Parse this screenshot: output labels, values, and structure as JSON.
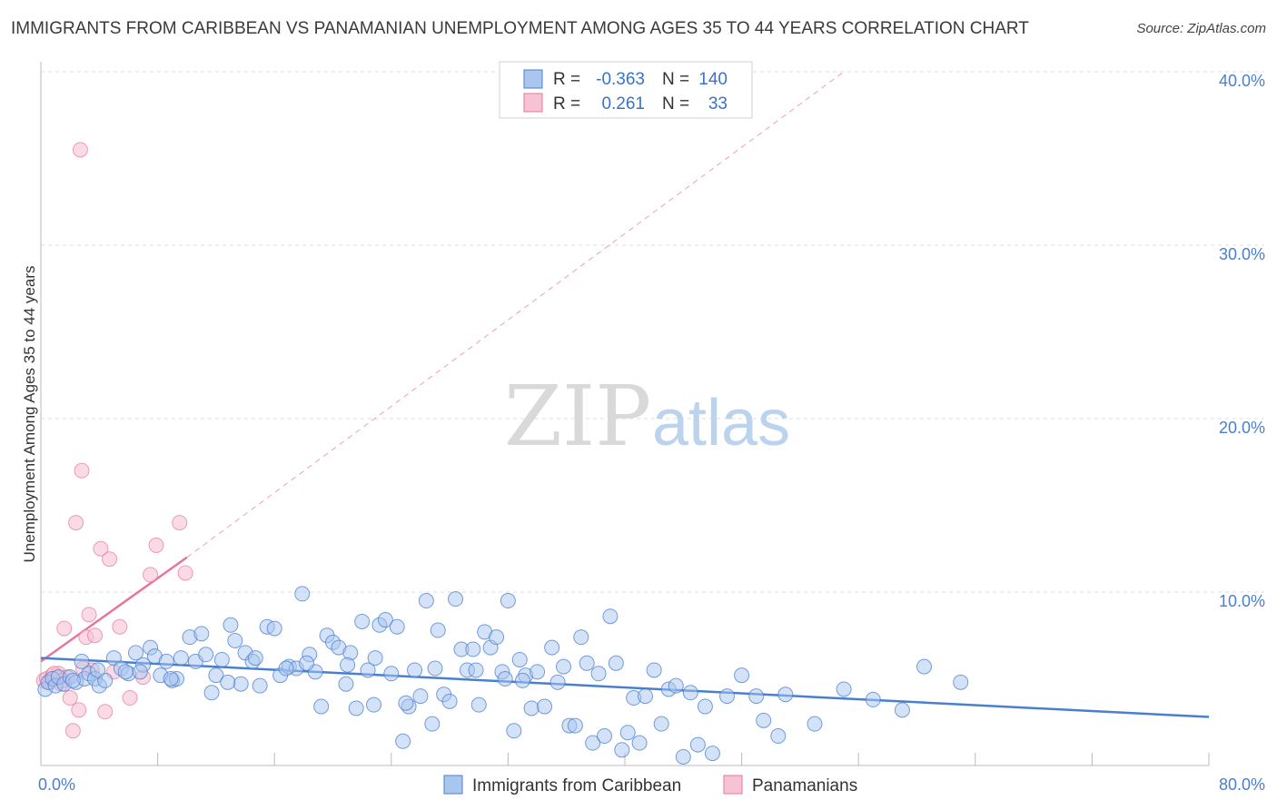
{
  "title": "IMMIGRANTS FROM CARIBBEAN VS PANAMANIAN UNEMPLOYMENT AMONG AGES 35 TO 44 YEARS CORRELATION CHART",
  "source": "Source: ZipAtlas.com",
  "watermark": {
    "zip": "ZIP",
    "atlas": "atlas"
  },
  "colors": {
    "blue": "#4a7fd0",
    "blue_fill": "#a9c6ef",
    "pink": "#e8769a",
    "pink_fill": "#f6c3d4",
    "grid": "#dcdcdc"
  },
  "legend": {
    "rows": [
      {
        "r_label": "R =",
        "r_value": "-0.363",
        "n_label": "N =",
        "n_value": "140"
      },
      {
        "r_label": "R =",
        "r_value": "0.261",
        "n_label": "N =",
        "n_value": "33"
      }
    ]
  },
  "bottom_legend": [
    "Immigrants from Caribbean",
    "Panamanians"
  ],
  "chart_data": {
    "type": "scatter",
    "title": "IMMIGRANTS FROM CARIBBEAN VS PANAMANIAN UNEMPLOYMENT AMONG AGES 35 TO 44 YEARS CORRELATION CHART",
    "xlabel": "",
    "ylabel": "Unemployment Among Ages 35 to 44 years",
    "xlim": [
      0,
      80
    ],
    "ylim": [
      0,
      40
    ],
    "x_tick_labels": [
      "0.0%",
      "80.0%"
    ],
    "y_ticks": [
      10,
      20,
      30,
      40
    ],
    "y_tick_labels": [
      "10.0%",
      "20.0%",
      "30.0%",
      "40.0%"
    ],
    "series": [
      {
        "name": "Immigrants from Caribbean",
        "R": -0.363,
        "N": 140,
        "trend": {
          "x": [
            0,
            80
          ],
          "y": [
            6.2,
            2.8
          ]
        },
        "points": [
          [
            0.3,
            4.4
          ],
          [
            0.5,
            4.8
          ],
          [
            0.8,
            5.0
          ],
          [
            1.0,
            4.6
          ],
          [
            1.2,
            5.1
          ],
          [
            1.6,
            4.7
          ],
          [
            2.0,
            5.1
          ],
          [
            2.4,
            4.8
          ],
          [
            2.8,
            6.0
          ],
          [
            3.0,
            5.0
          ],
          [
            3.3,
            5.3
          ],
          [
            3.7,
            5.0
          ],
          [
            4.0,
            4.6
          ],
          [
            4.4,
            4.9
          ],
          [
            5.0,
            6.2
          ],
          [
            5.5,
            5.6
          ],
          [
            6.0,
            5.3
          ],
          [
            6.5,
            6.5
          ],
          [
            7.0,
            5.8
          ],
          [
            7.5,
            6.8
          ],
          [
            7.8,
            6.3
          ],
          [
            8.2,
            5.2
          ],
          [
            8.6,
            6.0
          ],
          [
            9.0,
            4.9
          ],
          [
            9.3,
            5.0
          ],
          [
            9.6,
            6.2
          ],
          [
            10.2,
            7.4
          ],
          [
            10.6,
            6.0
          ],
          [
            11.0,
            7.6
          ],
          [
            11.3,
            6.4
          ],
          [
            11.7,
            4.2
          ],
          [
            12.0,
            5.2
          ],
          [
            12.4,
            6.1
          ],
          [
            13.0,
            8.1
          ],
          [
            13.3,
            7.2
          ],
          [
            13.7,
            4.7
          ],
          [
            14.0,
            6.5
          ],
          [
            14.5,
            6.0
          ],
          [
            15.0,
            4.6
          ],
          [
            15.5,
            8.0
          ],
          [
            16.0,
            7.9
          ],
          [
            16.4,
            5.2
          ],
          [
            17.0,
            5.7
          ],
          [
            17.5,
            5.6
          ],
          [
            17.9,
            9.9
          ],
          [
            18.4,
            6.4
          ],
          [
            18.8,
            5.4
          ],
          [
            19.2,
            3.4
          ],
          [
            19.6,
            7.5
          ],
          [
            20.0,
            7.1
          ],
          [
            20.4,
            6.8
          ],
          [
            20.9,
            4.7
          ],
          [
            21.2,
            6.5
          ],
          [
            21.6,
            3.3
          ],
          [
            22.0,
            8.3
          ],
          [
            22.4,
            5.5
          ],
          [
            22.8,
            3.5
          ],
          [
            23.2,
            8.1
          ],
          [
            23.6,
            8.4
          ],
          [
            24.0,
            5.3
          ],
          [
            24.4,
            8.0
          ],
          [
            24.8,
            1.4
          ],
          [
            25.2,
            3.4
          ],
          [
            25.6,
            5.5
          ],
          [
            26.0,
            4.0
          ],
          [
            26.4,
            9.5
          ],
          [
            26.8,
            2.4
          ],
          [
            27.2,
            7.8
          ],
          [
            27.6,
            4.1
          ],
          [
            28.0,
            3.7
          ],
          [
            28.4,
            9.6
          ],
          [
            28.8,
            6.7
          ],
          [
            29.2,
            5.5
          ],
          [
            29.6,
            6.7
          ],
          [
            30.0,
            3.5
          ],
          [
            30.4,
            7.7
          ],
          [
            30.8,
            6.8
          ],
          [
            31.2,
            7.4
          ],
          [
            31.6,
            5.4
          ],
          [
            32.0,
            9.5
          ],
          [
            32.4,
            2.0
          ],
          [
            32.8,
            6.1
          ],
          [
            33.2,
            5.2
          ],
          [
            33.6,
            3.3
          ],
          [
            34.0,
            5.4
          ],
          [
            34.5,
            3.4
          ],
          [
            35.0,
            6.8
          ],
          [
            35.4,
            4.8
          ],
          [
            35.8,
            5.7
          ],
          [
            36.2,
            2.3
          ],
          [
            36.6,
            2.3
          ],
          [
            37.0,
            7.4
          ],
          [
            37.4,
            5.9
          ],
          [
            37.8,
            1.3
          ],
          [
            38.2,
            5.3
          ],
          [
            38.6,
            1.7
          ],
          [
            39.0,
            8.6
          ],
          [
            39.4,
            5.9
          ],
          [
            39.8,
            0.9
          ],
          [
            40.2,
            1.9
          ],
          [
            40.6,
            3.9
          ],
          [
            41.0,
            1.3
          ],
          [
            41.4,
            4.0
          ],
          [
            42.0,
            5.5
          ],
          [
            42.5,
            2.4
          ],
          [
            43.0,
            4.4
          ],
          [
            43.5,
            4.6
          ],
          [
            44.0,
            0.5
          ],
          [
            44.5,
            4.2
          ],
          [
            45.0,
            1.2
          ],
          [
            45.5,
            3.4
          ],
          [
            46.0,
            0.7
          ],
          [
            47.0,
            4.0
          ],
          [
            48.0,
            5.2
          ],
          [
            49.0,
            4.0
          ],
          [
            49.5,
            2.6
          ],
          [
            50.5,
            1.7
          ],
          [
            51.0,
            4.1
          ],
          [
            53.0,
            2.4
          ],
          [
            55.0,
            4.4
          ],
          [
            57.0,
            3.8
          ],
          [
            59.0,
            3.2
          ],
          [
            60.5,
            5.7
          ],
          [
            63.0,
            4.8
          ],
          [
            2.2,
            4.9
          ],
          [
            3.9,
            5.5
          ],
          [
            5.8,
            5.4
          ],
          [
            6.8,
            5.4
          ],
          [
            8.9,
            5.0
          ],
          [
            12.8,
            4.8
          ],
          [
            14.7,
            6.2
          ],
          [
            16.8,
            5.6
          ],
          [
            18.2,
            5.9
          ],
          [
            21.0,
            5.8
          ],
          [
            22.9,
            6.2
          ],
          [
            25.0,
            3.6
          ],
          [
            27.0,
            5.6
          ],
          [
            29.8,
            5.5
          ],
          [
            31.8,
            5.0
          ],
          [
            33.0,
            4.9
          ]
        ]
      },
      {
        "name": "Panamanians",
        "R": 0.261,
        "N": 33,
        "trend": {
          "x": [
            0,
            10
          ],
          "y": [
            6.0,
            12.0
          ],
          "extended_to": [
            55,
            40.0
          ]
        },
        "points": [
          [
            0.2,
            4.9
          ],
          [
            0.4,
            5.0
          ],
          [
            0.6,
            4.8
          ],
          [
            0.8,
            5.2
          ],
          [
            1.0,
            5.0
          ],
          [
            1.2,
            5.3
          ],
          [
            1.4,
            4.7
          ],
          [
            1.6,
            7.9
          ],
          [
            1.8,
            5.1
          ],
          [
            2.0,
            3.9
          ],
          [
            2.2,
            2.0
          ],
          [
            2.4,
            14.0
          ],
          [
            2.6,
            3.2
          ],
          [
            2.8,
            17.0
          ],
          [
            3.1,
            7.4
          ],
          [
            3.3,
            8.7
          ],
          [
            3.5,
            5.5
          ],
          [
            3.7,
            7.5
          ],
          [
            4.1,
            12.5
          ],
          [
            4.4,
            3.1
          ],
          [
            4.7,
            11.9
          ],
          [
            5.0,
            5.4
          ],
          [
            5.4,
            8.0
          ],
          [
            6.1,
            3.9
          ],
          [
            7.0,
            5.1
          ],
          [
            7.5,
            11.0
          ],
          [
            7.9,
            12.7
          ],
          [
            9.5,
            14.0
          ],
          [
            9.9,
            11.1
          ],
          [
            2.7,
            35.5
          ],
          [
            0.9,
            5.3
          ],
          [
            1.5,
            4.9
          ],
          [
            2.9,
            5.6
          ]
        ]
      }
    ]
  }
}
